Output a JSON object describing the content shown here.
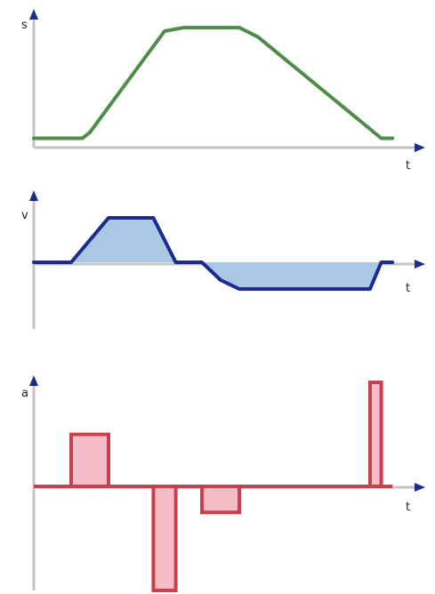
{
  "chart_data": [
    {
      "type": "line",
      "ylabel": "s",
      "xlabel": "t",
      "colors": {
        "line": "#4e8c4a",
        "fill": "none"
      },
      "x": [
        0,
        1.3,
        1.5,
        3.5,
        4.0,
        5.5,
        6.0,
        9.3,
        9.6
      ],
      "y": [
        0.05,
        0.05,
        0.1,
        0.97,
        1.0,
        1.0,
        0.92,
        0.05,
        0.05
      ],
      "xlim": [
        0,
        10
      ],
      "ylim": [
        0,
        1.1
      ]
    },
    {
      "type": "area",
      "ylabel": "v",
      "xlabel": "t",
      "colors": {
        "line": "#1d2a8f",
        "fill": "#a8c8e6"
      },
      "x": [
        0,
        1.0,
        2.0,
        3.2,
        3.8,
        4.5,
        5.0,
        5.5,
        9.0,
        9.3,
        9.6
      ],
      "y": [
        0,
        0,
        1.0,
        1.0,
        0,
        0,
        -0.4,
        -0.6,
        -0.6,
        0,
        0
      ],
      "xlim": [
        0,
        10
      ],
      "ylim": [
        -1.2,
        1.1
      ]
    },
    {
      "type": "bar",
      "ylabel": "a",
      "xlabel": "t",
      "colors": {
        "line": "#c8404e",
        "fill": "#f6bcc8"
      },
      "segments": [
        {
          "x0": 1.0,
          "x1": 2.0,
          "value": 0.5
        },
        {
          "x0": 3.2,
          "x1": 3.8,
          "value": -1.0
        },
        {
          "x0": 4.5,
          "x1": 5.5,
          "value": -0.25
        },
        {
          "x0": 9.0,
          "x1": 9.3,
          "value": 1.0
        }
      ],
      "xlim": [
        0,
        10
      ],
      "ylim": [
        -1.0,
        1.0
      ]
    }
  ]
}
